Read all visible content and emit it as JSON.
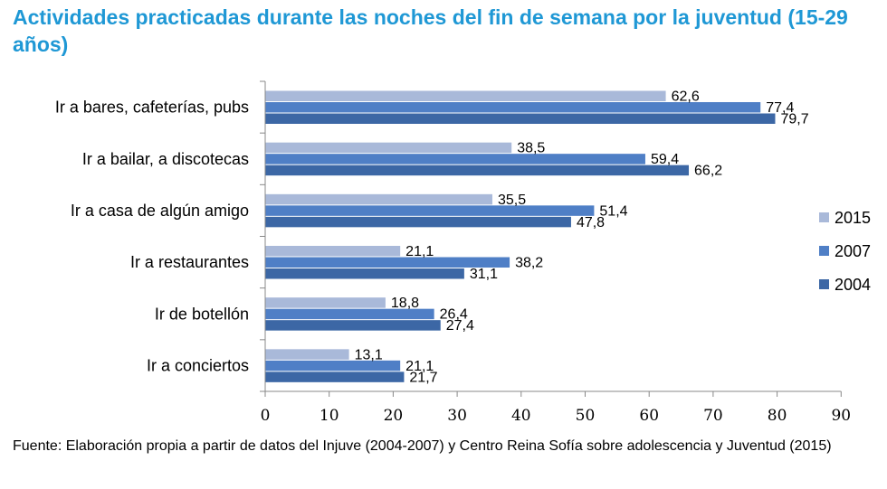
{
  "title": "Actividades practicadas durante las noches del fin de semana por la juventud (15-29 años)",
  "footnote": "Fuente: Elaboración propia a partir de datos del Injuve (2004-2007) y Centro Reina Sofía sobre adolescencia y Juventud (2015)",
  "colors": {
    "title": "#1f98d5",
    "2015": "#a9b9d9",
    "2007": "#4f7fc6",
    "2004": "#3c67a5",
    "axis": "#888888"
  },
  "chart_data": {
    "type": "bar",
    "orientation": "horizontal",
    "title": "Actividades practicadas durante las noches del fin de semana por la juventud (15-29 años)",
    "categories": [
      "Ir a bares, cafeterías, pubs",
      "Ir a bailar, a discotecas",
      "Ir a casa de algún amigo",
      "Ir a restaurantes",
      "Ir de botellón",
      "Ir a conciertos"
    ],
    "series": [
      {
        "name": "2015",
        "values": [
          62.6,
          38.5,
          35.5,
          21.1,
          18.8,
          13.1
        ],
        "labels": [
          "62,6",
          "38,5",
          "35,5",
          "21,1",
          "18,8",
          "13,1"
        ]
      },
      {
        "name": "2007",
        "values": [
          77.4,
          59.4,
          51.4,
          38.2,
          26.4,
          21.1
        ],
        "labels": [
          "77,4",
          "59,4",
          "51,4",
          "38,2",
          "26,4",
          "21,1"
        ]
      },
      {
        "name": "2004",
        "values": [
          79.7,
          66.2,
          47.8,
          31.1,
          27.4,
          21.7
        ],
        "labels": [
          "79,7",
          "66,2",
          "47,8",
          "31,1",
          "27,4",
          "21,7"
        ]
      }
    ],
    "xlim": [
      0,
      90
    ],
    "xticks": [
      "0",
      "10",
      "20",
      "30",
      "40",
      "50",
      "60",
      "70",
      "80",
      "90"
    ],
    "xlabel": "",
    "ylabel": "",
    "grid": false,
    "legend": {
      "position": "right",
      "entries": [
        "2015",
        "2007",
        "2004"
      ]
    }
  }
}
